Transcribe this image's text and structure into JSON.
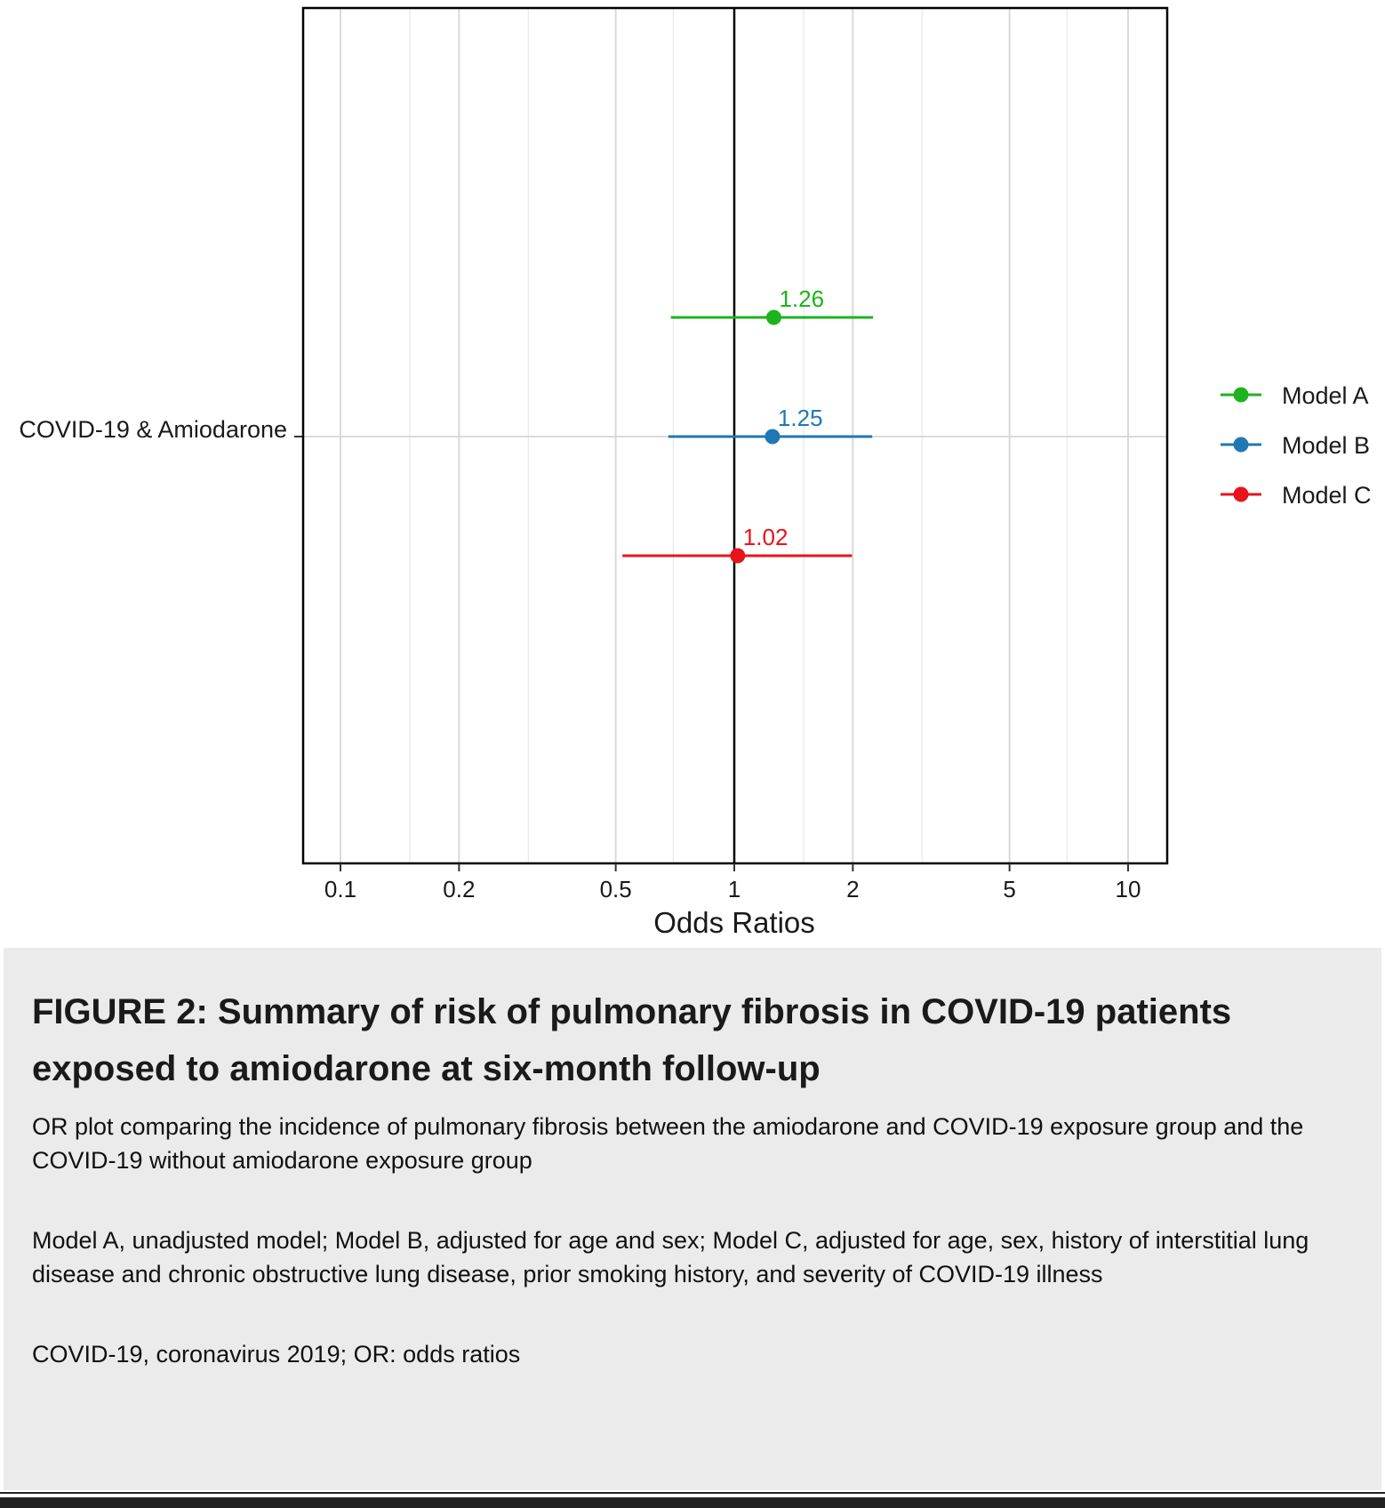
{
  "chart_data": {
    "type": "forest",
    "row_label": "COVID-19 & Amiodarone",
    "xlabel": "Odds Ratios",
    "x_scale": "log",
    "xlim": [
      0.08,
      12
    ],
    "x_ticks": [
      0.1,
      0.2,
      0.5,
      1,
      2,
      5,
      10
    ],
    "x_tick_labels": [
      "0.1",
      "0.2",
      "0.5",
      "1",
      "2",
      "5",
      "10"
    ],
    "x_minor_gridlines": [
      0.15,
      0.3,
      0.7,
      1.5,
      3,
      7
    ],
    "reference_line": 1,
    "grid": true,
    "legend_position": "right",
    "series": [
      {
        "name": "Model A",
        "or": 1.26,
        "ci_low": 0.69,
        "ci_high": 2.25,
        "label": "1.26",
        "color": "#1db31d"
      },
      {
        "name": "Model B",
        "or": 1.25,
        "ci_low": 0.68,
        "ci_high": 2.24,
        "label": "1.25",
        "color": "#1f78b4"
      },
      {
        "name": "Model C",
        "or": 1.02,
        "ci_low": 0.52,
        "ci_high": 1.99,
        "label": "1.02",
        "color": "#e8131b"
      }
    ]
  },
  "caption": {
    "title": "FIGURE 2: Summary of risk of pulmonary fibrosis in COVID-19 patients exposed to amiodarone at six-month follow-up",
    "paragraph_1": "OR plot comparing the incidence of pulmonary fibrosis between the amiodarone and COVID-19 exposure group and the COVID-19 without amiodarone exposure group",
    "paragraph_2": "Model A, unadjusted model; Model B, adjusted for age and sex; Model C, adjusted for age, sex, history of interstitial lung disease and chronic obstructive lung disease, prior smoking history, and severity of COVID-19 illness",
    "paragraph_3": "COVID-19, coronavirus 2019; OR: odds ratios"
  }
}
